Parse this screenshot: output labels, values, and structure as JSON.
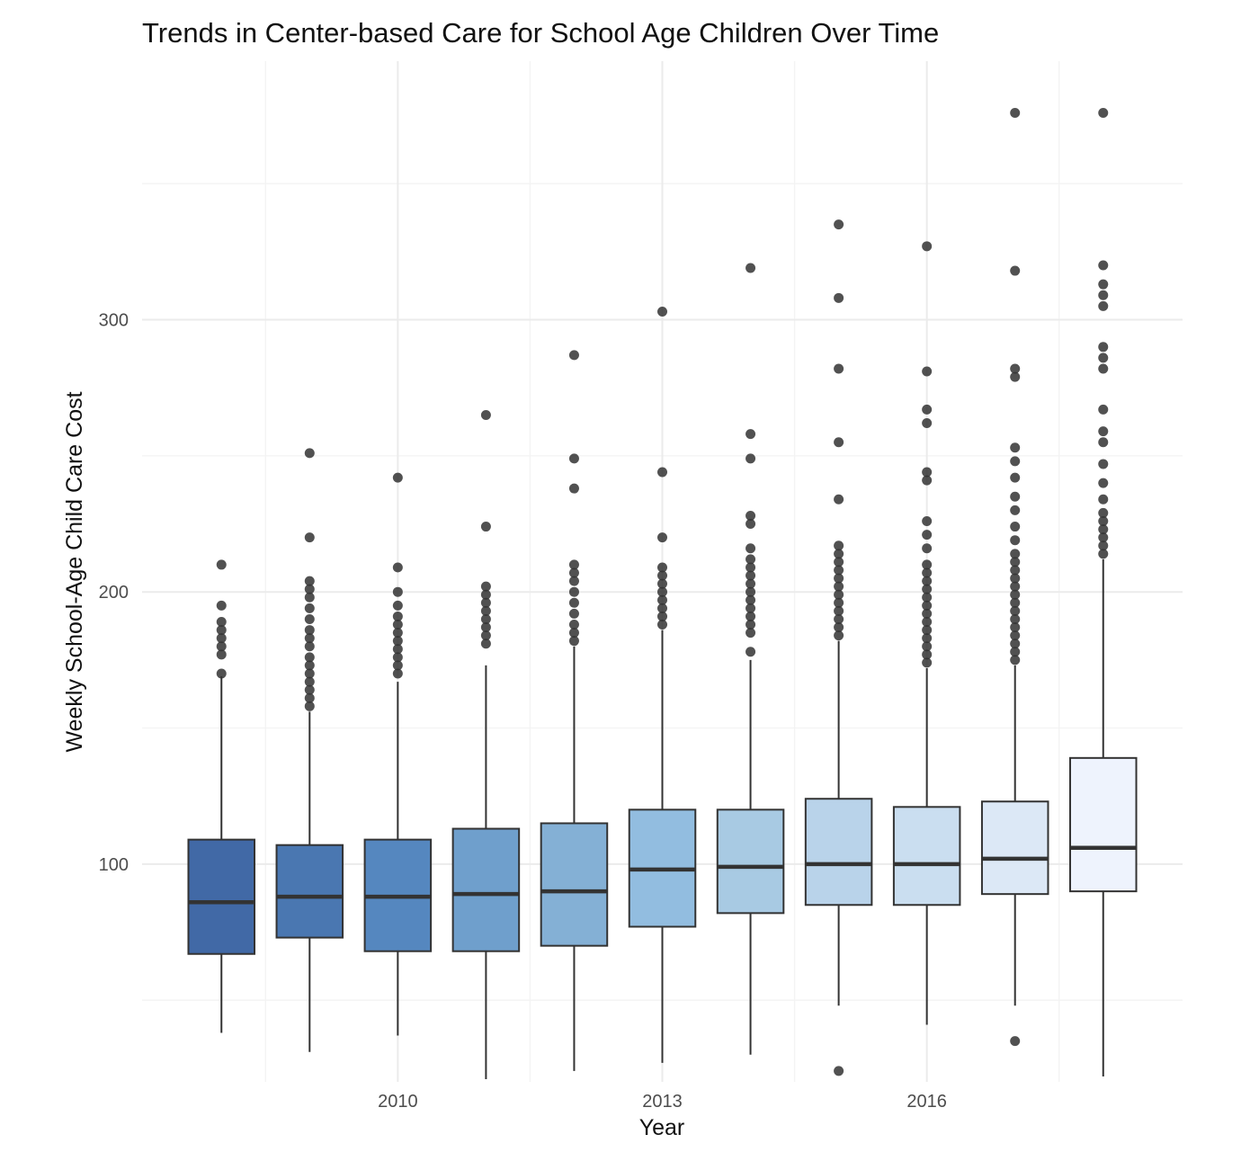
{
  "chart_data": {
    "type": "box",
    "title": "Trends in Center-based Care for School Age Children Over Time",
    "xlabel": "Year",
    "ylabel": "Weekly School-Age Child Care Cost",
    "x_ticks": [
      2010,
      2013,
      2016
    ],
    "y_ticks": [
      100,
      200,
      300
    ],
    "xlim": [
      2007.1,
      2018.9
    ],
    "ylim": [
      20,
      395
    ],
    "grid": true,
    "legend": "none",
    "series": [
      {
        "year": 2008,
        "q1": 67,
        "median": 86,
        "q3": 109,
        "whisker_low": 38,
        "whisker_high": 169,
        "outliers": [
          170,
          177,
          180,
          183,
          186,
          189,
          195,
          210
        ],
        "color": "#4169a6"
      },
      {
        "year": 2009,
        "q1": 73,
        "median": 88,
        "q3": 107,
        "whisker_low": 31,
        "whisker_high": 156,
        "outliers": [
          158,
          161,
          164,
          167,
          170,
          173,
          176,
          180,
          183,
          186,
          190,
          194,
          198,
          201,
          204,
          220,
          251
        ],
        "color": "#4a77b1"
      },
      {
        "year": 2010,
        "q1": 68,
        "median": 88,
        "q3": 109,
        "whisker_low": 37,
        "whisker_high": 167,
        "outliers": [
          170,
          173,
          176,
          179,
          182,
          185,
          188,
          191,
          195,
          200,
          209,
          242
        ],
        "color": "#5587bf"
      },
      {
        "year": 2011,
        "q1": 68,
        "median": 89,
        "q3": 113,
        "whisker_low": 21,
        "whisker_high": 173,
        "outliers": [
          181,
          184,
          187,
          190,
          193,
          196,
          199,
          202,
          224,
          265
        ],
        "color": "#6f9fcc"
      },
      {
        "year": 2012,
        "q1": 70,
        "median": 90,
        "q3": 115,
        "whisker_low": 24,
        "whisker_high": 180,
        "outliers": [
          182,
          185,
          188,
          192,
          196,
          200,
          204,
          207,
          210,
          238,
          249,
          287
        ],
        "color": "#84b0d5"
      },
      {
        "year": 2013,
        "q1": 77,
        "median": 98,
        "q3": 120,
        "whisker_low": 27,
        "whisker_high": 186,
        "outliers": [
          188,
          191,
          194,
          197,
          200,
          203,
          206,
          209,
          220,
          244,
          303
        ],
        "color": "#92bde0"
      },
      {
        "year": 2014,
        "q1": 82,
        "median": 99,
        "q3": 120,
        "whisker_low": 30,
        "whisker_high": 175,
        "outliers": [
          178,
          185,
          188,
          191,
          194,
          197,
          200,
          203,
          206,
          209,
          212,
          216,
          225,
          228,
          249,
          258,
          319
        ],
        "color": "#a8cae3"
      },
      {
        "year": 2015,
        "q1": 85,
        "median": 100,
        "q3": 124,
        "whisker_low": 48,
        "whisker_high": 182,
        "outliers": [
          24,
          184,
          187,
          190,
          193,
          196,
          199,
          202,
          205,
          208,
          211,
          214,
          217,
          234,
          255,
          282,
          308,
          335
        ],
        "color": "#b9d3ea"
      },
      {
        "year": 2016,
        "q1": 85,
        "median": 100,
        "q3": 121,
        "whisker_low": 41,
        "whisker_high": 172,
        "outliers": [
          174,
          177,
          180,
          183,
          186,
          189,
          192,
          195,
          198,
          201,
          204,
          207,
          210,
          216,
          221,
          226,
          241,
          244,
          262,
          267,
          281,
          327
        ],
        "color": "#cadef0"
      },
      {
        "year": 2017,
        "q1": 89,
        "median": 102,
        "q3": 123,
        "whisker_low": 48,
        "whisker_high": 173,
        "outliers": [
          35,
          175,
          178,
          181,
          184,
          187,
          190,
          193,
          196,
          199,
          202,
          205,
          208,
          211,
          214,
          219,
          224,
          230,
          235,
          242,
          248,
          253,
          279,
          282,
          318,
          376
        ],
        "color": "#dce8f6"
      },
      {
        "year": 2018,
        "q1": 90,
        "median": 106,
        "q3": 139,
        "whisker_low": 22,
        "whisker_high": 212,
        "outliers": [
          214,
          217,
          220,
          223,
          226,
          229,
          234,
          240,
          247,
          255,
          259,
          267,
          282,
          286,
          290,
          305,
          309,
          313,
          320,
          376
        ],
        "color": "#eef3fd"
      }
    ]
  }
}
